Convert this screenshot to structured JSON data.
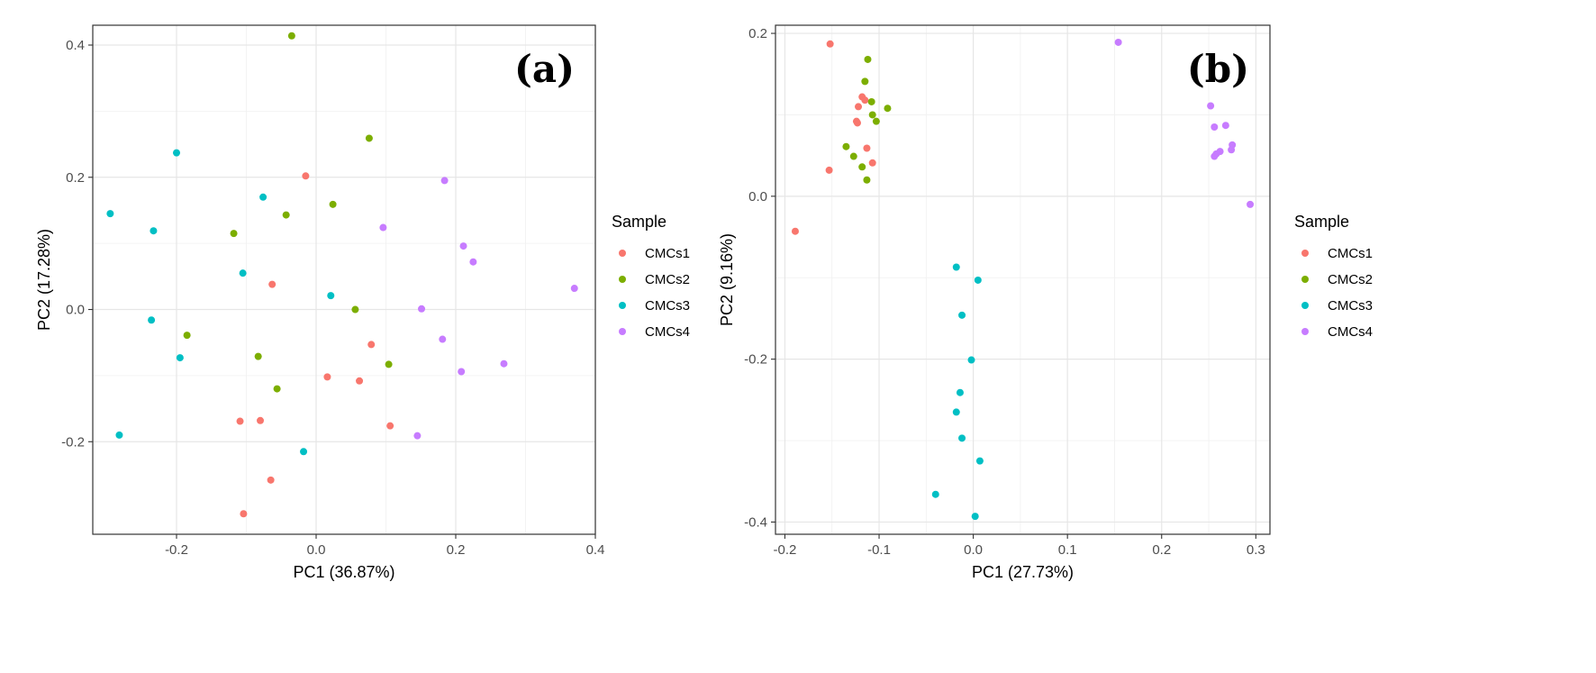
{
  "chart_data": [
    {
      "type": "scatter",
      "panel_label": "(a)",
      "xlabel": "PC1 (36.87%)",
      "ylabel": "PC2 (17.28%)",
      "xlim": [
        -0.32,
        0.4
      ],
      "ylim": [
        -0.34,
        0.43
      ],
      "x_ticks": [
        -0.2,
        0.0,
        0.2,
        0.4
      ],
      "x_tick_labels": [
        "-0.2",
        "0.0",
        "0.2",
        "0.4"
      ],
      "y_ticks": [
        -0.2,
        0.0,
        0.2,
        0.4
      ],
      "y_tick_labels": [
        "-0.2",
        "0.0",
        "0.2",
        "0.4"
      ],
      "grid": true,
      "legend": {
        "title": "Sample",
        "placement": "right"
      },
      "series": [
        {
          "name": "CMCs1",
          "color": "#F8766D",
          "points": [
            [
              -0.015,
              0.202
            ],
            [
              -0.063,
              0.038
            ],
            [
              0.079,
              -0.053
            ],
            [
              0.016,
              -0.102
            ],
            [
              0.062,
              -0.108
            ],
            [
              0.106,
              -0.176
            ],
            [
              -0.109,
              -0.169
            ],
            [
              -0.08,
              -0.168
            ],
            [
              -0.065,
              -0.258
            ],
            [
              -0.104,
              -0.309
            ]
          ]
        },
        {
          "name": "CMCs2",
          "color": "#7CAE00",
          "points": [
            [
              -0.035,
              0.414
            ],
            [
              0.076,
              0.259
            ],
            [
              0.024,
              0.159
            ],
            [
              -0.043,
              0.143
            ],
            [
              -0.118,
              0.115
            ],
            [
              0.056,
              0.0
            ],
            [
              -0.185,
              -0.039
            ],
            [
              -0.083,
              -0.071
            ],
            [
              0.104,
              -0.083
            ],
            [
              -0.056,
              -0.12
            ]
          ]
        },
        {
          "name": "CMCs3",
          "color": "#00BFC4",
          "points": [
            [
              -0.2,
              0.237
            ],
            [
              -0.295,
              0.145
            ],
            [
              -0.076,
              0.17
            ],
            [
              -0.233,
              0.119
            ],
            [
              -0.105,
              0.055
            ],
            [
              0.021,
              0.021
            ],
            [
              -0.236,
              -0.016
            ],
            [
              -0.195,
              -0.073
            ],
            [
              -0.282,
              -0.19
            ],
            [
              -0.018,
              -0.215
            ]
          ]
        },
        {
          "name": "CMCs4",
          "color": "#C77CFF",
          "points": [
            [
              0.184,
              0.195
            ],
            [
              0.096,
              0.124
            ],
            [
              0.211,
              0.096
            ],
            [
              0.225,
              0.072
            ],
            [
              0.37,
              0.032
            ],
            [
              0.151,
              0.001
            ],
            [
              0.181,
              -0.045
            ],
            [
              0.208,
              -0.094
            ],
            [
              0.269,
              -0.082
            ],
            [
              0.145,
              -0.191
            ]
          ]
        }
      ]
    },
    {
      "type": "scatter",
      "panel_label": "(b)",
      "xlabel": "PC1 (27.73%)",
      "ylabel": "PC2 (9.16%)",
      "xlim": [
        -0.21,
        0.315
      ],
      "ylim": [
        -0.415,
        0.21
      ],
      "x_ticks": [
        -0.2,
        -0.1,
        0.0,
        0.1,
        0.2,
        0.3
      ],
      "x_tick_labels": [
        "-0.2",
        "-0.1",
        "0.0",
        "0.1",
        "0.2",
        "0.3"
      ],
      "y_ticks": [
        -0.4,
        -0.2,
        0.0,
        0.2
      ],
      "y_tick_labels": [
        "-0.4",
        "-0.2",
        "0.0",
        "0.2"
      ],
      "grid": true,
      "legend": {
        "title": "Sample",
        "placement": "right"
      },
      "series": [
        {
          "name": "CMCs1",
          "color": "#F8766D",
          "points": [
            [
              -0.152,
              0.187
            ],
            [
              -0.118,
              0.122
            ],
            [
              -0.122,
              0.11
            ],
            [
              -0.123,
              0.09
            ],
            [
              -0.113,
              0.059
            ],
            [
              -0.153,
              0.032
            ],
            [
              -0.107,
              0.041
            ],
            [
              -0.189,
              -0.043
            ],
            [
              -0.115,
              0.118
            ],
            [
              -0.124,
              0.092
            ]
          ]
        },
        {
          "name": "CMCs2",
          "color": "#7CAE00",
          "points": [
            [
              -0.112,
              0.168
            ],
            [
              -0.115,
              0.141
            ],
            [
              -0.108,
              0.116
            ],
            [
              -0.091,
              0.108
            ],
            [
              -0.107,
              0.1
            ],
            [
              -0.103,
              0.092
            ],
            [
              -0.135,
              0.061
            ],
            [
              -0.127,
              0.049
            ],
            [
              -0.118,
              0.036
            ],
            [
              -0.113,
              0.02
            ]
          ]
        },
        {
          "name": "CMCs3",
          "color": "#00BFC4",
          "points": [
            [
              -0.018,
              -0.087
            ],
            [
              0.005,
              -0.103
            ],
            [
              -0.012,
              -0.146
            ],
            [
              -0.002,
              -0.201
            ],
            [
              -0.014,
              -0.241
            ],
            [
              -0.018,
              -0.265
            ],
            [
              -0.012,
              -0.297
            ],
            [
              0.007,
              -0.325
            ],
            [
              -0.04,
              -0.366
            ],
            [
              0.002,
              -0.393
            ]
          ]
        },
        {
          "name": "CMCs4",
          "color": "#C77CFF",
          "points": [
            [
              0.154,
              0.189
            ],
            [
              0.252,
              0.111
            ],
            [
              0.268,
              0.087
            ],
            [
              0.256,
              0.085
            ],
            [
              0.275,
              0.063
            ],
            [
              0.274,
              0.057
            ],
            [
              0.262,
              0.055
            ],
            [
              0.258,
              0.052
            ],
            [
              0.256,
              0.049
            ],
            [
              0.294,
              -0.01
            ]
          ]
        }
      ]
    }
  ]
}
